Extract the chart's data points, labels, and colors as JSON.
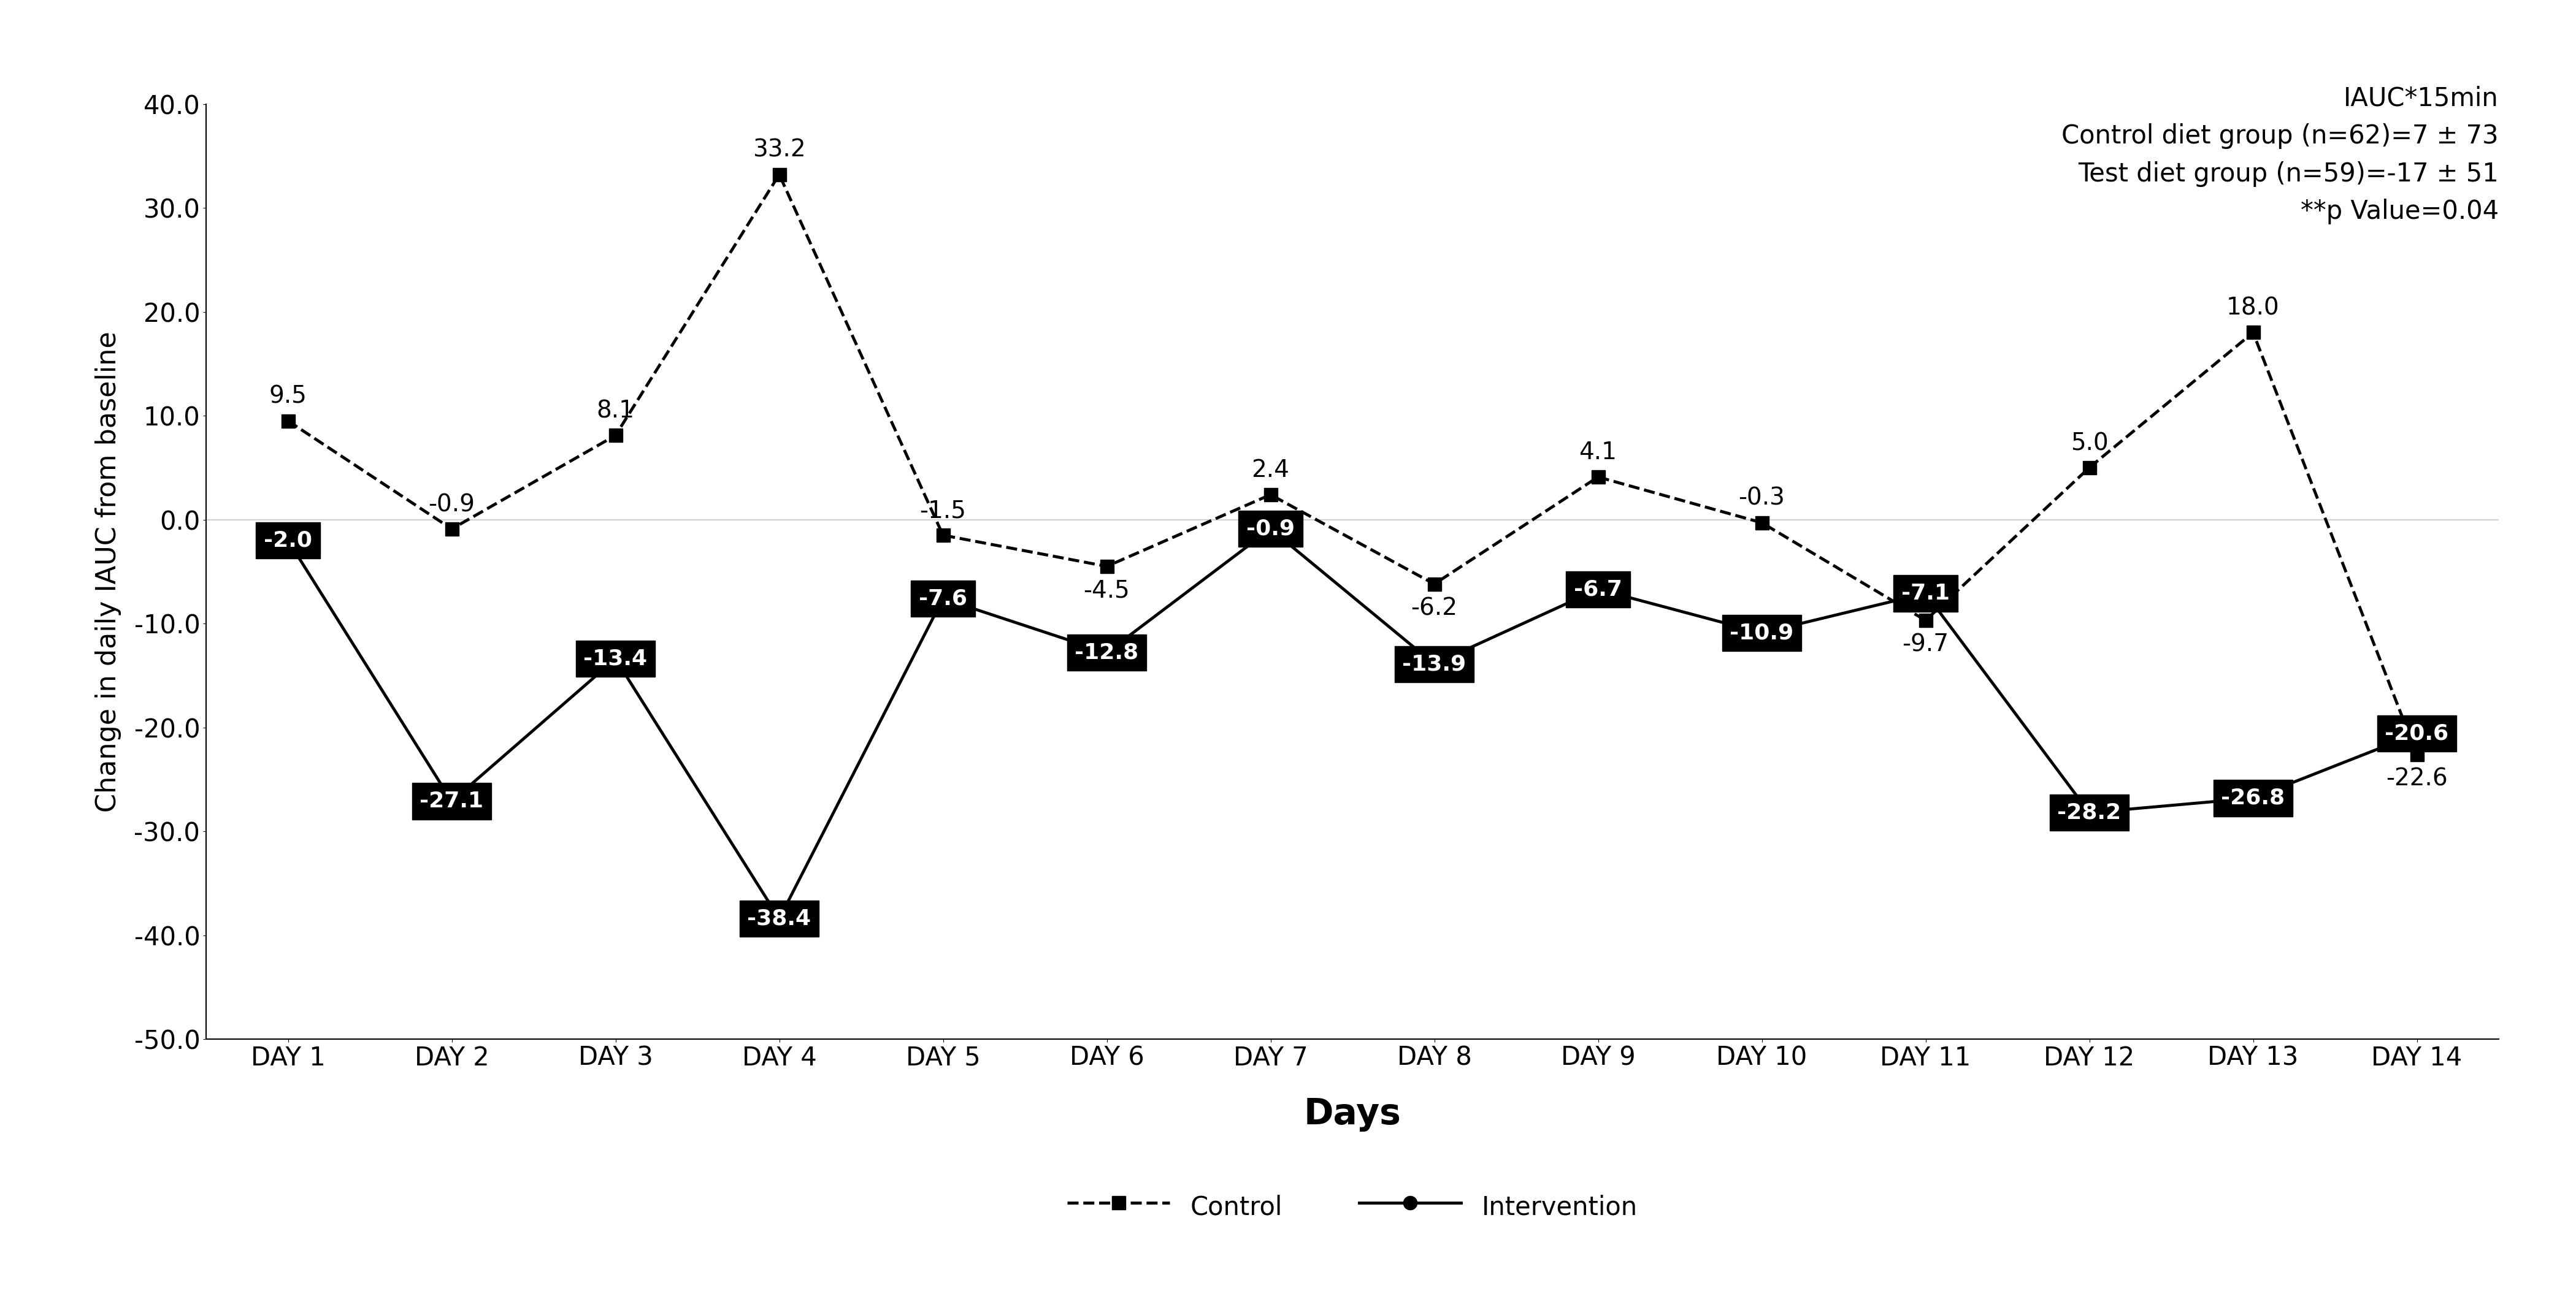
{
  "days": [
    "DAY 1",
    "DAY 2",
    "DAY 3",
    "DAY 4",
    "DAY 5",
    "DAY 6",
    "DAY 7",
    "DAY 8",
    "DAY 9",
    "DAY 10",
    "DAY 11",
    "DAY 12",
    "DAY 13",
    "DAY 14"
  ],
  "control_values": [
    9.5,
    -0.9,
    8.1,
    33.2,
    -1.5,
    -4.5,
    2.4,
    -6.2,
    4.1,
    -0.3,
    -9.7,
    5.0,
    18.0,
    -22.6
  ],
  "intervention_values": [
    -2.0,
    -27.1,
    -13.4,
    -38.4,
    -7.6,
    -12.8,
    -0.9,
    -13.9,
    -6.7,
    -10.9,
    -7.1,
    -28.2,
    -26.8,
    -20.6
  ],
  "control_label": "Control",
  "intervention_label": "Intervention",
  "ylabel": "Change in daily IAUC from baseline",
  "xlabel": "Days",
  "ylim": [
    -50.0,
    40.0
  ],
  "yticks": [
    -50.0,
    -40.0,
    -30.0,
    -20.0,
    -10.0,
    0.0,
    10.0,
    20.0,
    30.0,
    40.0
  ],
  "annotation_text": "IAUC*15min\nControl diet group (n=62)=7 ± 73\nTest diet group (n=59)=-17 ± 51\n**p Value=0.04",
  "control_color": "#000000",
  "intervention_color": "#000000",
  "background_color": "#ffffff",
  "ylabel_fontsize": 32,
  "xlabel_fontsize": 42,
  "tick_fontsize": 30,
  "annotation_fontsize": 30,
  "legend_fontsize": 30,
  "control_data_label_fontsize": 28,
  "intervention_data_label_fontsize": 26,
  "linewidth": 3.5,
  "markersize": 16,
  "control_offsets_y": [
    15,
    15,
    15,
    15,
    15,
    -15,
    15,
    -15,
    15,
    15,
    -15,
    15,
    15,
    -15
  ],
  "intervention_label_offsets_x": [
    0,
    0,
    0,
    0,
    0,
    0,
    0,
    0,
    0,
    0,
    0,
    0,
    0,
    0
  ]
}
